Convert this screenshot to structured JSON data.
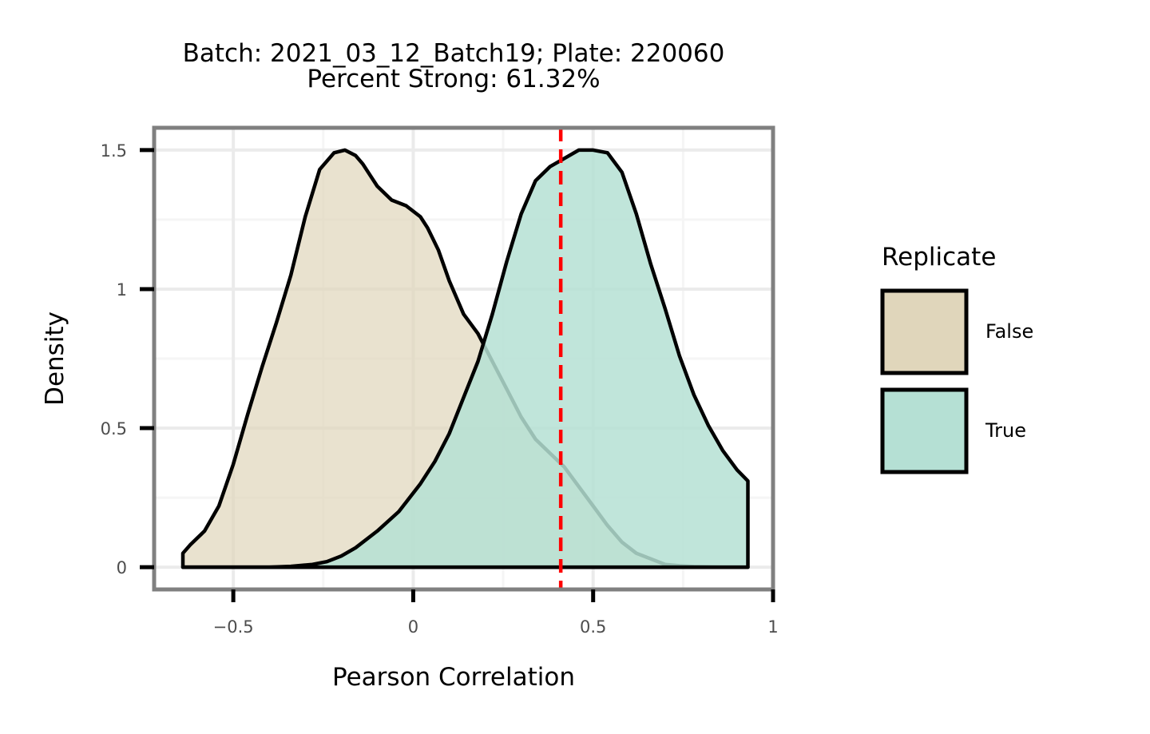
{
  "chart_data": {
    "type": "density",
    "title_lines": [
      "Batch: 2021_03_12_Batch19; Plate: 220060",
      "Percent Strong: 61.32%"
    ],
    "xlabel": "Pearson Correlation",
    "ylabel": "Density",
    "xlim": [
      -0.72,
      1.0
    ],
    "ylim": [
      -0.08,
      1.58
    ],
    "x_ticks": [
      -0.5,
      0,
      0.5,
      1
    ],
    "x_tick_labels": [
      "−0.5",
      "0",
      "0.5",
      "1"
    ],
    "y_ticks": [
      0,
      0.5,
      1,
      1.5
    ],
    "y_tick_labels": [
      "0",
      "0.5",
      "1",
      "1.5"
    ],
    "grid": true,
    "threshold": {
      "x": 0.41,
      "color": "#ff0000",
      "style": "dashed"
    },
    "legend": {
      "title": "Replicate",
      "position": "right",
      "entries": [
        {
          "label": "False",
          "color": "#e0d6bb"
        },
        {
          "label": "True",
          "color": "#b5e0d4"
        }
      ]
    },
    "series": [
      {
        "name": "False",
        "fill": "#e0d6bb",
        "opacity": 0.7,
        "x": [
          -0.64,
          -0.62,
          -0.58,
          -0.54,
          -0.5,
          -0.46,
          -0.42,
          -0.38,
          -0.34,
          -0.3,
          -0.26,
          -0.22,
          -0.19,
          -0.16,
          -0.14,
          -0.12,
          -0.1,
          -0.06,
          -0.02,
          0.02,
          0.04,
          0.07,
          0.1,
          0.14,
          0.18,
          0.22,
          0.26,
          0.3,
          0.34,
          0.38,
          0.42,
          0.46,
          0.5,
          0.54,
          0.58,
          0.62,
          0.66,
          0.7,
          0.74,
          0.78,
          0.82,
          0.86,
          0.9,
          0.93
        ],
        "y": [
          0.05,
          0.08,
          0.13,
          0.22,
          0.37,
          0.55,
          0.72,
          0.88,
          1.05,
          1.26,
          1.43,
          1.49,
          1.5,
          1.48,
          1.45,
          1.41,
          1.37,
          1.32,
          1.3,
          1.26,
          1.22,
          1.14,
          1.03,
          0.91,
          0.84,
          0.74,
          0.64,
          0.54,
          0.46,
          0.41,
          0.36,
          0.29,
          0.22,
          0.15,
          0.09,
          0.05,
          0.03,
          0.01,
          0.005,
          0.002,
          0.001,
          0.0,
          0.0,
          0.0
        ]
      },
      {
        "name": "True",
        "fill": "#b5e0d4",
        "opacity": 0.85,
        "x": [
          -0.64,
          -0.5,
          -0.4,
          -0.34,
          -0.28,
          -0.24,
          -0.2,
          -0.16,
          -0.1,
          -0.04,
          0.02,
          0.06,
          0.1,
          0.14,
          0.18,
          0.22,
          0.26,
          0.3,
          0.34,
          0.38,
          0.42,
          0.46,
          0.5,
          0.54,
          0.58,
          0.62,
          0.66,
          0.7,
          0.74,
          0.78,
          0.82,
          0.86,
          0.9,
          0.93
        ],
        "y": [
          0.0,
          0.0,
          0.0,
          0.003,
          0.01,
          0.02,
          0.04,
          0.07,
          0.13,
          0.2,
          0.3,
          0.38,
          0.48,
          0.61,
          0.74,
          0.91,
          1.1,
          1.27,
          1.39,
          1.44,
          1.47,
          1.5,
          1.5,
          1.49,
          1.42,
          1.27,
          1.09,
          0.93,
          0.76,
          0.62,
          0.51,
          0.42,
          0.35,
          0.31
        ]
      }
    ]
  }
}
